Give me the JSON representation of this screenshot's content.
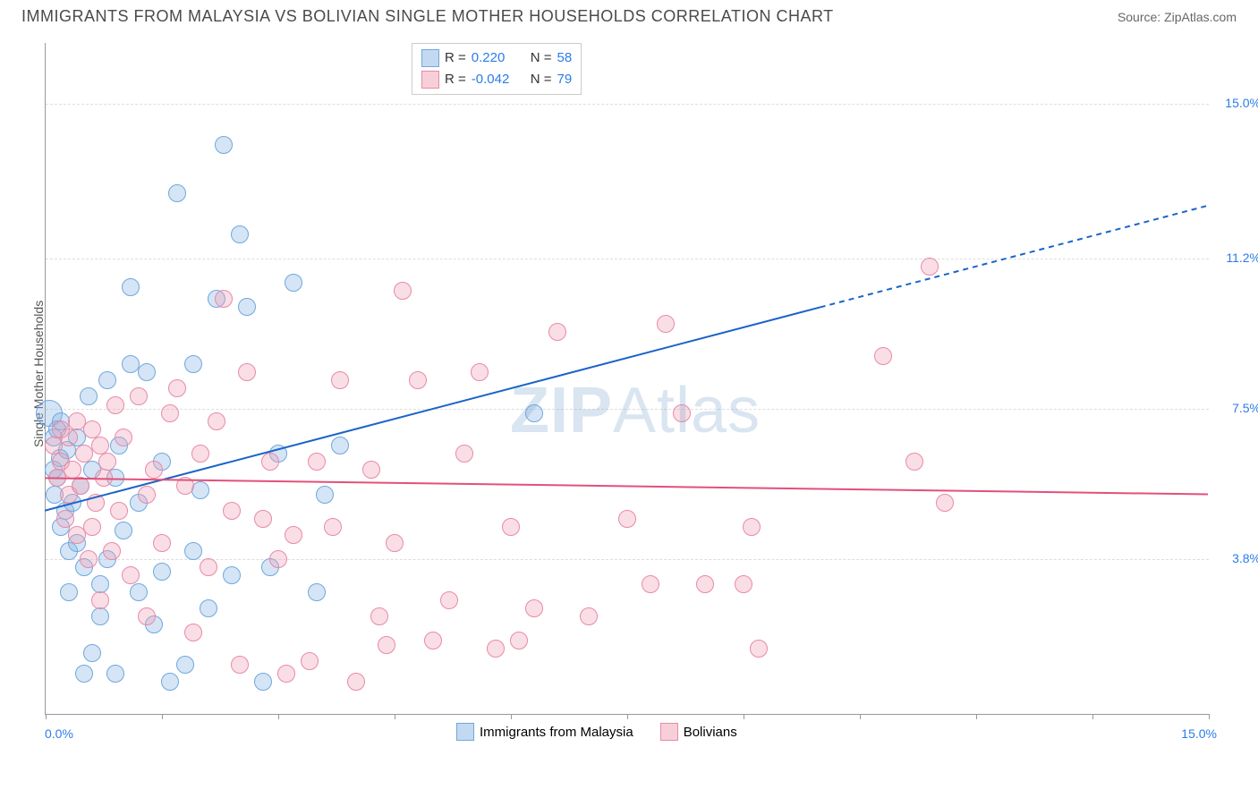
{
  "header": {
    "title": "IMMIGRANTS FROM MALAYSIA VS BOLIVIAN SINGLE MOTHER HOUSEHOLDS CORRELATION CHART",
    "source": "Source: ZipAtlas.com"
  },
  "watermark": {
    "pre": "ZIP",
    "post": "Atlas"
  },
  "chart": {
    "type": "scatter",
    "ylabel": "Single Mother Households",
    "xlim": [
      0,
      15
    ],
    "ylim": [
      0,
      16.5
    ],
    "xtick_positions": [
      0,
      1.5,
      3,
      4.5,
      6,
      7.5,
      9,
      10.5,
      12,
      13.5,
      15
    ],
    "xtick_labels": {
      "left": "0.0%",
      "right": "15.0%"
    },
    "ygrid": [
      {
        "v": 3.8,
        "label": "3.8%"
      },
      {
        "v": 7.5,
        "label": "7.5%"
      },
      {
        "v": 11.2,
        "label": "11.2%"
      },
      {
        "v": 15.0,
        "label": "15.0%"
      }
    ],
    "background_color": "#ffffff",
    "grid_color": "#dddddd",
    "axis_color": "#999999",
    "tick_label_color": "#2b7ce9",
    "marker_radius": 9,
    "marker_stroke_width": 1.5,
    "series": [
      {
        "name": "Immigrants from Malaysia",
        "fill": "rgba(136,180,230,0.35)",
        "stroke": "#6fa8dc",
        "R": "0.220",
        "N": "58",
        "regression": {
          "x1": 0,
          "y1": 5.0,
          "x2": 10,
          "y2": 10.0,
          "x2_ext": 15,
          "y2_ext": 12.5,
          "color": "#1c64c8",
          "width": 2,
          "dash_ext": "6,5"
        },
        "points": [
          {
            "x": 0.05,
            "y": 7.4,
            "r": 14
          },
          {
            "x": 0.1,
            "y": 6.0
          },
          {
            "x": 0.1,
            "y": 6.8
          },
          {
            "x": 0.12,
            "y": 5.4
          },
          {
            "x": 0.15,
            "y": 7.0
          },
          {
            "x": 0.15,
            "y": 5.8
          },
          {
            "x": 0.18,
            "y": 6.3
          },
          {
            "x": 0.2,
            "y": 7.2
          },
          {
            "x": 0.2,
            "y": 4.6
          },
          {
            "x": 0.25,
            "y": 5.0
          },
          {
            "x": 0.28,
            "y": 6.5
          },
          {
            "x": 0.3,
            "y": 4.0
          },
          {
            "x": 0.3,
            "y": 3.0
          },
          {
            "x": 0.35,
            "y": 5.2
          },
          {
            "x": 0.4,
            "y": 6.8
          },
          {
            "x": 0.4,
            "y": 4.2
          },
          {
            "x": 0.45,
            "y": 5.6
          },
          {
            "x": 0.5,
            "y": 3.6
          },
          {
            "x": 0.5,
            "y": 1.0
          },
          {
            "x": 0.55,
            "y": 7.8
          },
          {
            "x": 0.6,
            "y": 6.0
          },
          {
            "x": 0.6,
            "y": 1.5
          },
          {
            "x": 0.7,
            "y": 2.4
          },
          {
            "x": 0.7,
            "y": 3.2
          },
          {
            "x": 0.8,
            "y": 3.8
          },
          {
            "x": 0.8,
            "y": 8.2
          },
          {
            "x": 0.9,
            "y": 5.8
          },
          {
            "x": 0.9,
            "y": 1.0
          },
          {
            "x": 0.95,
            "y": 6.6
          },
          {
            "x": 1.0,
            "y": 4.5
          },
          {
            "x": 1.1,
            "y": 10.5
          },
          {
            "x": 1.1,
            "y": 8.6
          },
          {
            "x": 1.2,
            "y": 5.2
          },
          {
            "x": 1.2,
            "y": 3.0
          },
          {
            "x": 1.3,
            "y": 8.4
          },
          {
            "x": 1.4,
            "y": 2.2
          },
          {
            "x": 1.5,
            "y": 6.2
          },
          {
            "x": 1.5,
            "y": 3.5
          },
          {
            "x": 1.6,
            "y": 0.8
          },
          {
            "x": 1.7,
            "y": 12.8
          },
          {
            "x": 1.8,
            "y": 1.2
          },
          {
            "x": 1.9,
            "y": 4.0
          },
          {
            "x": 1.9,
            "y": 8.6
          },
          {
            "x": 2.0,
            "y": 5.5
          },
          {
            "x": 2.1,
            "y": 2.6
          },
          {
            "x": 2.2,
            "y": 10.2
          },
          {
            "x": 2.3,
            "y": 14.0
          },
          {
            "x": 2.4,
            "y": 3.4
          },
          {
            "x": 2.5,
            "y": 11.8
          },
          {
            "x": 2.6,
            "y": 10.0
          },
          {
            "x": 2.8,
            "y": 0.8
          },
          {
            "x": 2.9,
            "y": 3.6
          },
          {
            "x": 3.0,
            "y": 6.4
          },
          {
            "x": 3.2,
            "y": 10.6
          },
          {
            "x": 3.5,
            "y": 3.0
          },
          {
            "x": 3.6,
            "y": 5.4
          },
          {
            "x": 3.8,
            "y": 6.6
          },
          {
            "x": 6.3,
            "y": 7.4
          }
        ]
      },
      {
        "name": "Bolivians",
        "fill": "rgba(240,160,180,0.35)",
        "stroke": "#e88aa8",
        "R": "-0.042",
        "N": "79",
        "regression": {
          "x1": 0,
          "y1": 5.8,
          "x2": 15,
          "y2": 5.4,
          "color": "#e3507a",
          "width": 2
        },
        "points": [
          {
            "x": 0.1,
            "y": 6.6
          },
          {
            "x": 0.15,
            "y": 5.8
          },
          {
            "x": 0.2,
            "y": 7.0
          },
          {
            "x": 0.2,
            "y": 6.2
          },
          {
            "x": 0.25,
            "y": 4.8
          },
          {
            "x": 0.3,
            "y": 6.8
          },
          {
            "x": 0.3,
            "y": 5.4
          },
          {
            "x": 0.35,
            "y": 6.0
          },
          {
            "x": 0.4,
            "y": 7.2
          },
          {
            "x": 0.4,
            "y": 4.4
          },
          {
            "x": 0.45,
            "y": 5.6
          },
          {
            "x": 0.5,
            "y": 6.4
          },
          {
            "x": 0.55,
            "y": 3.8
          },
          {
            "x": 0.6,
            "y": 7.0
          },
          {
            "x": 0.6,
            "y": 4.6
          },
          {
            "x": 0.65,
            "y": 5.2
          },
          {
            "x": 0.7,
            "y": 6.6
          },
          {
            "x": 0.7,
            "y": 2.8
          },
          {
            "x": 0.75,
            "y": 5.8
          },
          {
            "x": 0.8,
            "y": 6.2
          },
          {
            "x": 0.85,
            "y": 4.0
          },
          {
            "x": 0.9,
            "y": 7.6
          },
          {
            "x": 0.95,
            "y": 5.0
          },
          {
            "x": 1.0,
            "y": 6.8
          },
          {
            "x": 1.1,
            "y": 3.4
          },
          {
            "x": 1.2,
            "y": 7.8
          },
          {
            "x": 1.3,
            "y": 5.4
          },
          {
            "x": 1.3,
            "y": 2.4
          },
          {
            "x": 1.4,
            "y": 6.0
          },
          {
            "x": 1.5,
            "y": 4.2
          },
          {
            "x": 1.6,
            "y": 7.4
          },
          {
            "x": 1.7,
            "y": 8.0
          },
          {
            "x": 1.8,
            "y": 5.6
          },
          {
            "x": 1.9,
            "y": 2.0
          },
          {
            "x": 2.0,
            "y": 6.4
          },
          {
            "x": 2.1,
            "y": 3.6
          },
          {
            "x": 2.2,
            "y": 7.2
          },
          {
            "x": 2.3,
            "y": 10.2
          },
          {
            "x": 2.4,
            "y": 5.0
          },
          {
            "x": 2.5,
            "y": 1.2
          },
          {
            "x": 2.6,
            "y": 8.4
          },
          {
            "x": 2.8,
            "y": 4.8
          },
          {
            "x": 2.9,
            "y": 6.2
          },
          {
            "x": 3.0,
            "y": 3.8
          },
          {
            "x": 3.1,
            "y": 1.0
          },
          {
            "x": 3.2,
            "y": 4.4
          },
          {
            "x": 3.4,
            "y": 1.3
          },
          {
            "x": 3.5,
            "y": 6.2
          },
          {
            "x": 3.7,
            "y": 4.6
          },
          {
            "x": 3.8,
            "y": 8.2
          },
          {
            "x": 4.0,
            "y": 0.8
          },
          {
            "x": 4.2,
            "y": 6.0
          },
          {
            "x": 4.3,
            "y": 2.4
          },
          {
            "x": 4.4,
            "y": 1.7
          },
          {
            "x": 4.5,
            "y": 4.2
          },
          {
            "x": 4.6,
            "y": 10.4
          },
          {
            "x": 4.8,
            "y": 8.2
          },
          {
            "x": 5.0,
            "y": 1.8
          },
          {
            "x": 5.2,
            "y": 2.8
          },
          {
            "x": 5.4,
            "y": 6.4
          },
          {
            "x": 5.6,
            "y": 8.4
          },
          {
            "x": 5.8,
            "y": 1.6
          },
          {
            "x": 6.0,
            "y": 4.6
          },
          {
            "x": 6.1,
            "y": 1.8
          },
          {
            "x": 6.3,
            "y": 2.6
          },
          {
            "x": 6.6,
            "y": 9.4
          },
          {
            "x": 7.0,
            "y": 2.4
          },
          {
            "x": 7.5,
            "y": 4.8
          },
          {
            "x": 7.8,
            "y": 3.2
          },
          {
            "x": 8.0,
            "y": 9.6
          },
          {
            "x": 8.2,
            "y": 7.4
          },
          {
            "x": 8.5,
            "y": 3.2
          },
          {
            "x": 9.0,
            "y": 3.2
          },
          {
            "x": 9.1,
            "y": 4.6
          },
          {
            "x": 9.2,
            "y": 1.6
          },
          {
            "x": 10.8,
            "y": 8.8
          },
          {
            "x": 11.4,
            "y": 11.0
          },
          {
            "x": 11.2,
            "y": 6.2
          },
          {
            "x": 11.6,
            "y": 5.2
          }
        ]
      }
    ],
    "legend_top": {
      "rows": [
        {
          "swatch_fill": "rgba(136,180,230,0.5)",
          "swatch_stroke": "#6fa8dc",
          "r_label": "R =",
          "r": "0.220",
          "n_label": "N =",
          "n": "58"
        },
        {
          "swatch_fill": "rgba(240,160,180,0.5)",
          "swatch_stroke": "#e88aa8",
          "r_label": "R =",
          "r": "-0.042",
          "n_label": "N =",
          "n": "79"
        }
      ]
    },
    "legend_bottom": [
      {
        "swatch_fill": "rgba(136,180,230,0.5)",
        "swatch_stroke": "#6fa8dc",
        "label": "Immigrants from Malaysia"
      },
      {
        "swatch_fill": "rgba(240,160,180,0.5)",
        "swatch_stroke": "#e88aa8",
        "label": "Bolivians"
      }
    ]
  }
}
